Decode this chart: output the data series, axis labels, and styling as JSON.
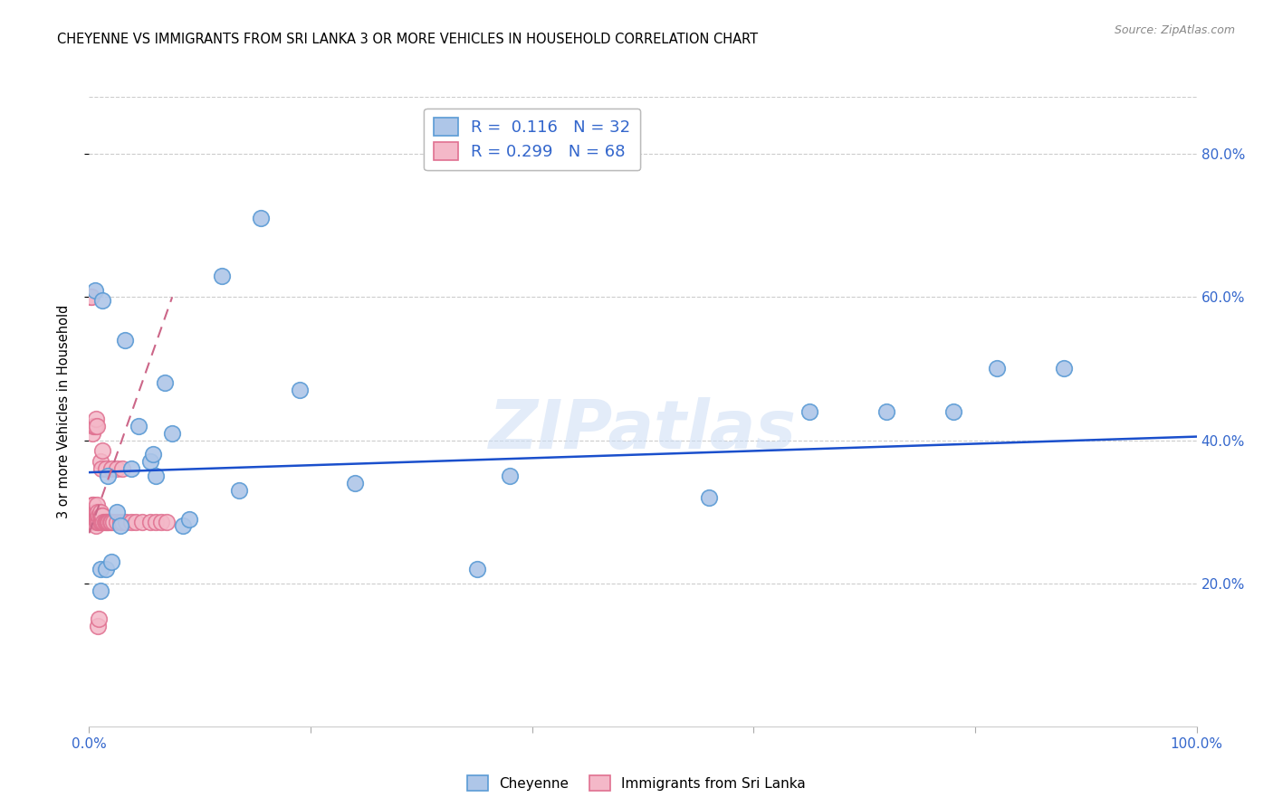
{
  "title": "CHEYENNE VS IMMIGRANTS FROM SRI LANKA 3 OR MORE VEHICLES IN HOUSEHOLD CORRELATION CHART",
  "source": "Source: ZipAtlas.com",
  "ylabel": "3 or more Vehicles in Household",
  "xlim": [
    0.0,
    1.0
  ],
  "ylim": [
    0.0,
    0.88
  ],
  "xticks": [
    0.0,
    0.2,
    0.4,
    0.6,
    0.8,
    1.0
  ],
  "xtick_labels": [
    "0.0%",
    "",
    "",
    "",
    "",
    "100.0%"
  ],
  "yticks": [
    0.2,
    0.4,
    0.6,
    0.8
  ],
  "ytick_labels_right": [
    "20.0%",
    "40.0%",
    "60.0%",
    "80.0%"
  ],
  "cheyenne_color": "#aec6e8",
  "srilanka_color": "#f4b8c8",
  "cheyenne_edge": "#5b9bd5",
  "srilanka_edge": "#e07090",
  "trend_blue": "#1a4fcc",
  "trend_pink": "#cc6688",
  "legend_R1": "0.116",
  "legend_N1": "32",
  "legend_R2": "0.299",
  "legend_N2": "68",
  "watermark": "ZIPatlas",
  "cheyenne_x": [
    0.005,
    0.01,
    0.012,
    0.015,
    0.017,
    0.02,
    0.025,
    0.028,
    0.032,
    0.038,
    0.045,
    0.055,
    0.058,
    0.06,
    0.068,
    0.075,
    0.085,
    0.09,
    0.12,
    0.135,
    0.155,
    0.19,
    0.24,
    0.35,
    0.38,
    0.56,
    0.65,
    0.72,
    0.78,
    0.82,
    0.88,
    0.01
  ],
  "cheyenne_y": [
    0.61,
    0.22,
    0.595,
    0.22,
    0.35,
    0.23,
    0.3,
    0.28,
    0.54,
    0.36,
    0.42,
    0.37,
    0.38,
    0.35,
    0.48,
    0.41,
    0.28,
    0.29,
    0.63,
    0.33,
    0.71,
    0.47,
    0.34,
    0.22,
    0.35,
    0.32,
    0.44,
    0.44,
    0.44,
    0.5,
    0.5,
    0.19
  ],
  "srilanka_x": [
    0.001,
    0.001,
    0.002,
    0.002,
    0.003,
    0.003,
    0.003,
    0.004,
    0.004,
    0.004,
    0.005,
    0.005,
    0.005,
    0.006,
    0.006,
    0.006,
    0.007,
    0.007,
    0.007,
    0.007,
    0.008,
    0.008,
    0.008,
    0.009,
    0.009,
    0.01,
    0.01,
    0.01,
    0.011,
    0.011,
    0.012,
    0.012,
    0.013,
    0.014,
    0.015,
    0.016,
    0.017,
    0.018,
    0.019,
    0.02,
    0.022,
    0.025,
    0.028,
    0.03,
    0.033,
    0.038,
    0.042,
    0.048,
    0.055,
    0.06,
    0.065,
    0.07,
    0.001,
    0.002,
    0.003,
    0.004,
    0.005,
    0.006,
    0.007,
    0.008,
    0.009,
    0.01,
    0.011,
    0.012,
    0.015,
    0.02,
    0.025,
    0.03
  ],
  "srilanka_y": [
    0.29,
    0.3,
    0.285,
    0.295,
    0.3,
    0.31,
    0.285,
    0.295,
    0.3,
    0.31,
    0.285,
    0.295,
    0.3,
    0.28,
    0.295,
    0.3,
    0.285,
    0.295,
    0.3,
    0.31,
    0.285,
    0.295,
    0.3,
    0.285,
    0.295,
    0.285,
    0.295,
    0.3,
    0.285,
    0.295,
    0.285,
    0.295,
    0.285,
    0.285,
    0.285,
    0.285,
    0.285,
    0.285,
    0.285,
    0.285,
    0.285,
    0.285,
    0.285,
    0.285,
    0.285,
    0.285,
    0.285,
    0.285,
    0.285,
    0.285,
    0.285,
    0.285,
    0.6,
    0.6,
    0.41,
    0.42,
    0.42,
    0.43,
    0.42,
    0.14,
    0.15,
    0.37,
    0.36,
    0.385,
    0.36,
    0.36,
    0.36,
    0.36
  ],
  "blue_trend_x": [
    0.0,
    1.0
  ],
  "blue_trend_y": [
    0.355,
    0.405
  ],
  "pink_trend_x": [
    0.0,
    0.075
  ],
  "pink_trend_y": [
    0.27,
    0.6
  ]
}
